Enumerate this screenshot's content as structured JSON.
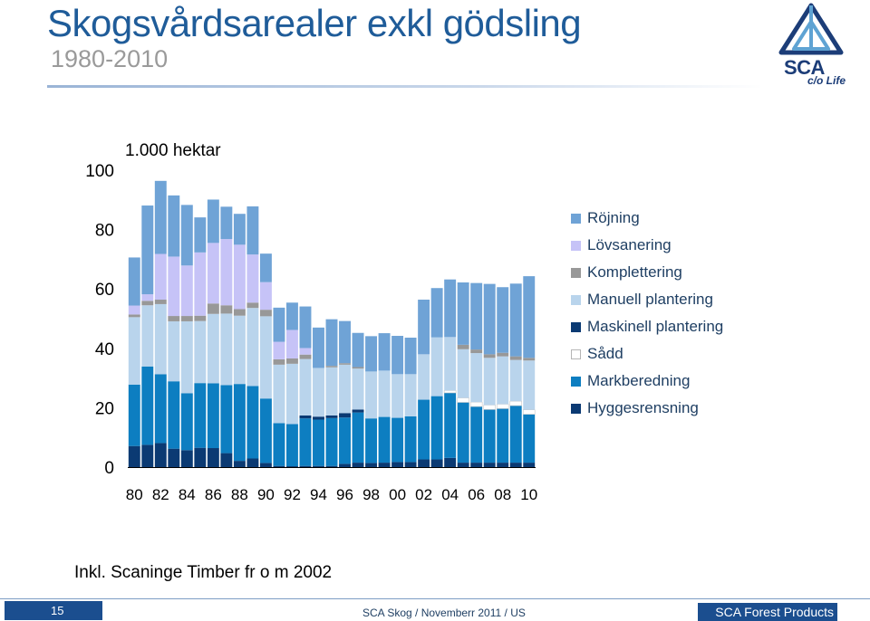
{
  "slide": {
    "title": "Skogsvårdsarealer exkl gödsling",
    "subtitle": "1980-2010",
    "note": "Inkl. Scaninge Timber fr o m 2002",
    "page_number": "15",
    "footer_center": "SCA Skog / Novemberr 2011 / US",
    "footer_right": "SCA Forest Products"
  },
  "logo": {
    "word": "SCA",
    "tagline": "c/o Life"
  },
  "colors": {
    "title": "#1f5c99",
    "footer_bar": "#1b4e8f"
  },
  "chart_data": {
    "type": "bar",
    "stacked": true,
    "unit_label": "1.000 hektar",
    "ylim": [
      0,
      100
    ],
    "yticks": [
      0,
      20,
      40,
      60,
      80,
      100
    ],
    "x": [
      1980,
      1981,
      1982,
      1983,
      1984,
      1985,
      1986,
      1987,
      1988,
      1989,
      1990,
      1991,
      1992,
      1993,
      1994,
      1995,
      1996,
      1997,
      1998,
      1999,
      2000,
      2001,
      2002,
      2003,
      2004,
      2005,
      2006,
      2007,
      2008,
      2009,
      2010
    ],
    "xtick_labels": [
      "80",
      "82",
      "84",
      "86",
      "88",
      "90",
      "92",
      "94",
      "96",
      "98",
      "00",
      "02",
      "04",
      "06",
      "08",
      "10"
    ],
    "legend_position": "right",
    "grid": false,
    "series": [
      {
        "name": "Hyggesrensning",
        "color": "#0b3a73",
        "values": [
          7.1,
          7.5,
          8.1,
          6.2,
          5.7,
          6.5,
          6.4,
          4.7,
          2.1,
          2.9,
          1.4,
          0.4,
          0.3,
          0.4,
          0.4,
          0.4,
          1.1,
          1.5,
          1.4,
          1.5,
          1.7,
          1.7,
          2.6,
          2.6,
          3.1,
          1.5,
          1.5,
          1.5,
          1.5,
          1.5,
          1.5
        ]
      },
      {
        "name": "Markberedning",
        "color": "#0d7ec1",
        "values": [
          20.7,
          26.4,
          23.2,
          22.7,
          19.2,
          21.8,
          21.8,
          22.9,
          25.9,
          24.4,
          21.7,
          14.4,
          14.2,
          16.0,
          15.6,
          16.1,
          15.6,
          16.9,
          15.0,
          15.4,
          14.9,
          15.4,
          20.1,
          21.3,
          21.9,
          20.3,
          18.9,
          17.9,
          18.2,
          19.2,
          16.3
        ]
      },
      {
        "name": "Sådd",
        "color": "#ffffff",
        "values": [
          0,
          0,
          0,
          0,
          0,
          0,
          0,
          0,
          0,
          0,
          0,
          0,
          0,
          0,
          0,
          0,
          0,
          0,
          0,
          0,
          0,
          0,
          0,
          0,
          0.8,
          1.5,
          1.5,
          1.5,
          1.5,
          1.5,
          1.5
        ]
      },
      {
        "name": "Maskinell plantering",
        "color": "#0b3a73",
        "values": [
          0,
          0,
          0,
          0,
          0,
          0,
          0,
          0,
          0,
          0,
          0,
          0,
          0,
          1.0,
          1.0,
          0.9,
          1.5,
          1.0,
          0,
          0,
          0,
          0,
          0,
          0,
          0,
          0,
          0,
          0,
          0,
          0,
          0
        ]
      },
      {
        "name": "Manuell plantering",
        "color": "#b9d4ec",
        "values": [
          22.7,
          20.6,
          23.6,
          20.2,
          24.2,
          20.9,
          23.4,
          24.1,
          23.0,
          26.3,
          27.7,
          19.7,
          20.3,
          19.0,
          16.4,
          16.2,
          16.3,
          13.8,
          15.8,
          15.6,
          14.7,
          14.2,
          15.3,
          19.8,
          18.0,
          16.4,
          16.5,
          15.9,
          16.1,
          13.9,
          16.6
        ]
      },
      {
        "name": "Komplettering",
        "color": "#989898",
        "values": [
          0.9,
          1.5,
          1.5,
          1.8,
          1.8,
          1.8,
          3.5,
          2.8,
          2.2,
          1.8,
          2.2,
          1.8,
          1.8,
          1.5,
          0,
          0.5,
          0.5,
          0.5,
          0,
          0,
          0,
          0,
          0,
          0,
          0,
          1.5,
          1.2,
          1.2,
          1.2,
          1.2,
          0.9
        ]
      },
      {
        "name": "Lövsanering",
        "color": "#c6c3f7",
        "values": [
          3.0,
          2.2,
          15.4,
          20.0,
          17.0,
          21.3,
          20.4,
          22.3,
          21.7,
          16.2,
          9.3,
          5.9,
          9.6,
          2.2,
          0,
          0,
          0,
          0,
          0,
          0,
          0,
          0,
          0,
          0,
          0,
          0,
          0,
          0,
          0,
          0,
          0
        ]
      },
      {
        "name": "Röjning",
        "color": "#6fa3d6",
        "values": [
          16.2,
          29.9,
          24.6,
          20.6,
          20.4,
          11.8,
          14.6,
          10.9,
          10.4,
          16.2,
          9.6,
          11.5,
          9.2,
          14.0,
          13.6,
          15.7,
          14.2,
          11.5,
          11.9,
          12.6,
          12.9,
          12.3,
          18.4,
          16.6,
          19.4,
          21.0,
          22.4,
          23.7,
          22.1,
          24.5,
          27.5
        ]
      }
    ],
    "legend_order": [
      "Röjning",
      "Lövsanering",
      "Komplettering",
      "Manuell plantering",
      "Maskinell plantering",
      "Sådd",
      "Markberedning",
      "Hyggesrensning"
    ]
  }
}
